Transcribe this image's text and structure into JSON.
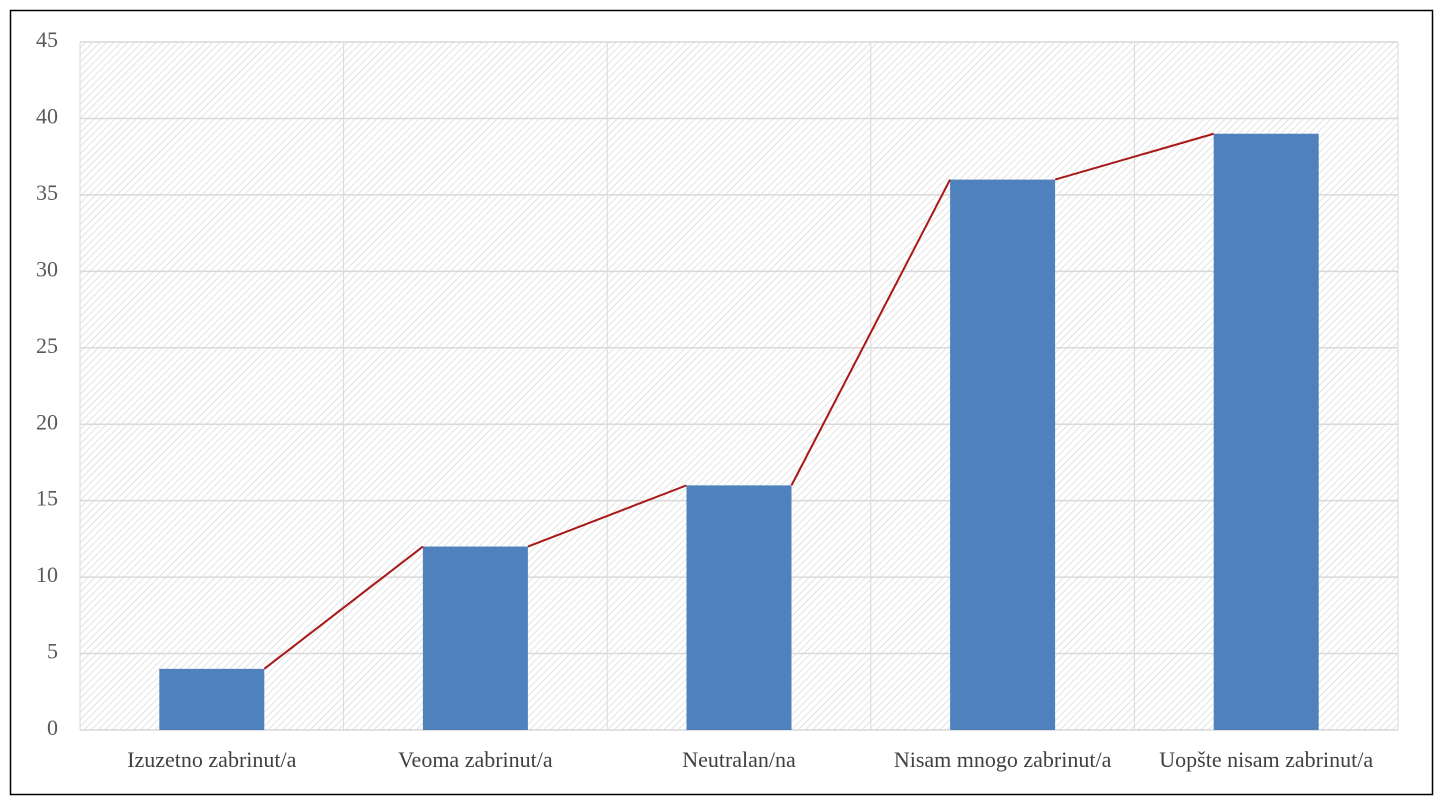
{
  "chart_data": {
    "type": "bar",
    "categories": [
      "Izuzetno zabrinut/a",
      "Veoma zabrinut/a",
      "Neutralan/na",
      "Nisam mnogo zabrinut/a",
      "Uopšte nisam zabrinut/a"
    ],
    "values": [
      4,
      12,
      16,
      36,
      39
    ],
    "color": "#4f81bd",
    "connector_color": "#a81818",
    "ylim": [
      0,
      45
    ],
    "yticks": [
      0,
      5,
      10,
      15,
      20,
      25,
      30,
      35,
      40,
      45
    ],
    "grid": true
  }
}
